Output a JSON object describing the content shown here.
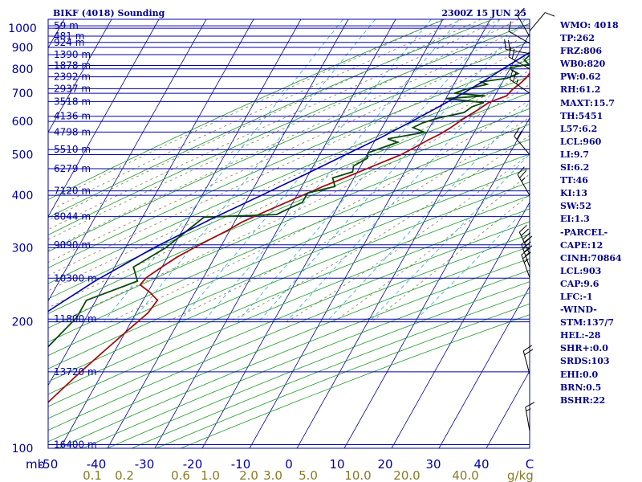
{
  "header": {
    "station_title": "BIKF (4018) Sounding",
    "valid_time": "2300Z 15 JUN 25"
  },
  "indices": [
    "WMO: 4018",
    "TP:262",
    "FRZ:806",
    "WB0:820",
    "PW:0.62",
    "RH:61.2",
    "MAXT:15.7",
    "TH:5451",
    "L57:6.2",
    "LCL:960",
    "LI:9.7",
    "SI:6.2",
    "TT:46",
    "KI:13",
    "SW:52",
    "EI:1.3",
    "-PARCEL-",
    "CAPE:12",
    "CINH:70864",
    "LCL:903",
    "CAP:9.6",
    "LFC:-1",
    "-WIND-",
    "STM:137/7",
    "HEL:-28",
    "SHR+:0.0",
    "SRDS:103",
    "EHI:0.0",
    "BRN:0.5",
    "BSHR:22"
  ],
  "chart_data": {
    "type": "skew-t log-p sounding",
    "title": "BIKF (4018) Sounding",
    "subtitle": "2300Z 15 JUN 25",
    "x_axis": {
      "label": "",
      "unit_label": "mb",
      "temperature_range": [
        -50,
        50
      ],
      "temperature_ticks": [
        -50,
        -40,
        -30,
        -20,
        -10,
        0,
        10,
        20,
        30,
        40,
        50
      ],
      "temperature_tick_labels": [
        "-50",
        "-40",
        "-30",
        "-20",
        "-10",
        "0",
        "10",
        "20",
        "30",
        "40",
        "C"
      ]
    },
    "mixing_ratio_axis": {
      "unit_label": "g/kg",
      "ticks": [
        0.1,
        0.2,
        0.6,
        1.0,
        2.0,
        3.0,
        5.0,
        10.0,
        20.0,
        40.0
      ],
      "tick_labels": [
        "0.1",
        "0.2",
        "0.6",
        "1.0",
        "2.0",
        "3.0",
        "5.0",
        "10.0",
        "20.0",
        "40.0"
      ]
    },
    "y_axis": {
      "scale": "log",
      "pressure_range": [
        1000,
        100
      ],
      "pressure_ticks": [
        100,
        200,
        300,
        400,
        500,
        600,
        700,
        800,
        900,
        1000
      ],
      "pressure_tick_labels": [
        "100",
        "200",
        "300",
        "400",
        "500",
        "600",
        "700",
        "800",
        "900",
        "1000"
      ]
    },
    "height_levels": [
      {
        "p": 1013,
        "label": "59 m"
      },
      {
        "p": 957,
        "label": "481 m"
      },
      {
        "p": 925,
        "label": "924 m"
      },
      {
        "p": 865,
        "label": "1390 m"
      },
      {
        "p": 815,
        "label": "1878 m"
      },
      {
        "p": 766,
        "label": "2392 m"
      },
      {
        "p": 718,
        "label": "2937 m"
      },
      {
        "p": 669,
        "label": "3518 m"
      },
      {
        "p": 617,
        "label": "4136 m"
      },
      {
        "p": 566,
        "label": "4798 m"
      },
      {
        "p": 514,
        "label": "5510 m"
      },
      {
        "p": 463,
        "label": "6279 m"
      },
      {
        "p": 410,
        "label": "7120 m"
      },
      {
        "p": 356,
        "label": "8044 m"
      },
      {
        "p": 305,
        "label": "9090 m"
      },
      {
        "p": 254,
        "label": "10300 m"
      },
      {
        "p": 203,
        "label": "11800 m"
      },
      {
        "p": 152,
        "label": "13720 m"
      },
      {
        "p": 102,
        "label": "16400 m"
      }
    ],
    "series": [
      {
        "color": "#a01010",
        "points": [
          [
            1010,
            9.7
          ],
          [
            985,
            7.5
          ],
          [
            960,
            6.5
          ],
          [
            930,
            6.5
          ],
          [
            900,
            7.5
          ],
          [
            880,
            7.0
          ],
          [
            850,
            6.2
          ],
          [
            820,
            5.5
          ],
          [
            790,
            4.8
          ],
          [
            760,
            4.5
          ],
          [
            735,
            3.8
          ],
          [
            715,
            3.0
          ],
          [
            690,
            2.5
          ],
          [
            665,
            -0.5
          ],
          [
            640,
            -1.8
          ],
          [
            610,
            -3.8
          ],
          [
            580,
            -5.5
          ],
          [
            560,
            -7.0
          ],
          [
            540,
            -9.0
          ],
          [
            520,
            -10.8
          ],
          [
            500,
            -12.8
          ],
          [
            480,
            -15.8
          ],
          [
            460,
            -18.8
          ],
          [
            440,
            -22.0
          ],
          [
            420,
            -25.5
          ],
          [
            400,
            -28.8
          ],
          [
            380,
            -32.2
          ],
          [
            360,
            -35.8
          ],
          [
            345,
            -38.5
          ],
          [
            330,
            -40.5
          ],
          [
            315,
            -43.0
          ],
          [
            300,
            -45.5
          ],
          [
            285,
            -48.0
          ],
          [
            270,
            -50.0
          ],
          [
            255,
            -52.0
          ],
          [
            245,
            -52.5
          ],
          [
            235,
            -49.5
          ],
          [
            225,
            -47.0
          ],
          [
            210,
            -47.5
          ],
          [
            190,
            -49.8
          ],
          [
            170,
            -52.3
          ],
          [
            150,
            -55.0
          ],
          [
            130,
            -57.8
          ],
          [
            115,
            -60.0
          ],
          [
            100,
            -62.5
          ]
        ]
      },
      {
        "color": "#0a4a0a",
        "points": [
          [
            1010,
            9.7
          ],
          [
            975,
            5.0
          ],
          [
            950,
            3.5
          ],
          [
            925,
            2.8
          ],
          [
            900,
            4.5
          ],
          [
            880,
            3.2
          ],
          [
            860,
            2.5
          ],
          [
            840,
            2.0
          ],
          [
            820,
            3.5
          ],
          [
            805,
            0.0
          ],
          [
            795,
            0.5
          ],
          [
            780,
            2.3
          ],
          [
            760,
            0.5
          ],
          [
            745,
            -4.5
          ],
          [
            735,
            -3.0
          ],
          [
            715,
            -7.0
          ],
          [
            700,
            -8.8
          ],
          [
            690,
            -2.0
          ],
          [
            680,
            -10.0
          ],
          [
            665,
            -1.5
          ],
          [
            650,
            -3.5
          ],
          [
            630,
            -4.5
          ],
          [
            610,
            -9.5
          ],
          [
            595,
            -12.0
          ],
          [
            580,
            -13.5
          ],
          [
            565,
            -10.5
          ],
          [
            545,
            -17.5
          ],
          [
            535,
            -15.0
          ],
          [
            520,
            -17.5
          ],
          [
            505,
            -20.0
          ],
          [
            490,
            -19.5
          ],
          [
            470,
            -21.5
          ],
          [
            455,
            -21.0
          ],
          [
            440,
            -24.5
          ],
          [
            420,
            -23.0
          ],
          [
            405,
            -28.0
          ],
          [
            385,
            -28.0
          ],
          [
            370,
            -30.5
          ],
          [
            360,
            -32.0
          ],
          [
            355,
            -47.0
          ],
          [
            300,
            -51.5
          ],
          [
            270,
            -56.0
          ],
          [
            250,
            -53.5
          ],
          [
            225,
            -62.0
          ],
          [
            205,
            -62.0
          ],
          [
            170,
            -65.0
          ],
          [
            130,
            -70.0
          ],
          [
            100,
            -76.5
          ]
        ]
      },
      {
        "color": "#0000a8",
        "points": [
          [
            1000,
            9.4
          ],
          [
            950,
            6.2
          ],
          [
            900,
            3.5
          ],
          [
            850,
            1.0
          ],
          [
            800,
            -1.5
          ],
          [
            750,
            -4.0
          ],
          [
            700,
            -7.0
          ],
          [
            650,
            -10.5
          ],
          [
            600,
            -14.5
          ],
          [
            550,
            -19.0
          ],
          [
            500,
            -24.5
          ],
          [
            450,
            -30.5
          ],
          [
            400,
            -37.5
          ],
          [
            350,
            -45.5
          ],
          [
            300,
            -54.0
          ],
          [
            250,
            -62.5
          ],
          [
            200,
            -71.0
          ],
          [
            150,
            -80.0
          ],
          [
            100,
            -89.0
          ]
        ]
      }
    ],
    "wind_barbs": [
      {
        "p": 985,
        "dir": 40,
        "spd": 10
      },
      {
        "p": 955,
        "dir": 330,
        "spd": 10
      },
      {
        "p": 920,
        "dir": 300,
        "spd": 10
      },
      {
        "p": 870,
        "dir": 280,
        "spd": 20
      },
      {
        "p": 800,
        "dir": 300,
        "spd": 20
      },
      {
        "p": 700,
        "dir": 305,
        "spd": 25
      },
      {
        "p": 500,
        "dir": 320,
        "spd": 20
      },
      {
        "p": 400,
        "dir": 330,
        "spd": 25
      },
      {
        "p": 290,
        "dir": 335,
        "spd": 40
      },
      {
        "p": 270,
        "dir": 340,
        "spd": 35
      },
      {
        "p": 255,
        "dir": 340,
        "spd": 25
      },
      {
        "p": 150,
        "dir": 345,
        "spd": 20
      },
      {
        "p": 110,
        "dir": 350,
        "spd": 15
      }
    ]
  }
}
